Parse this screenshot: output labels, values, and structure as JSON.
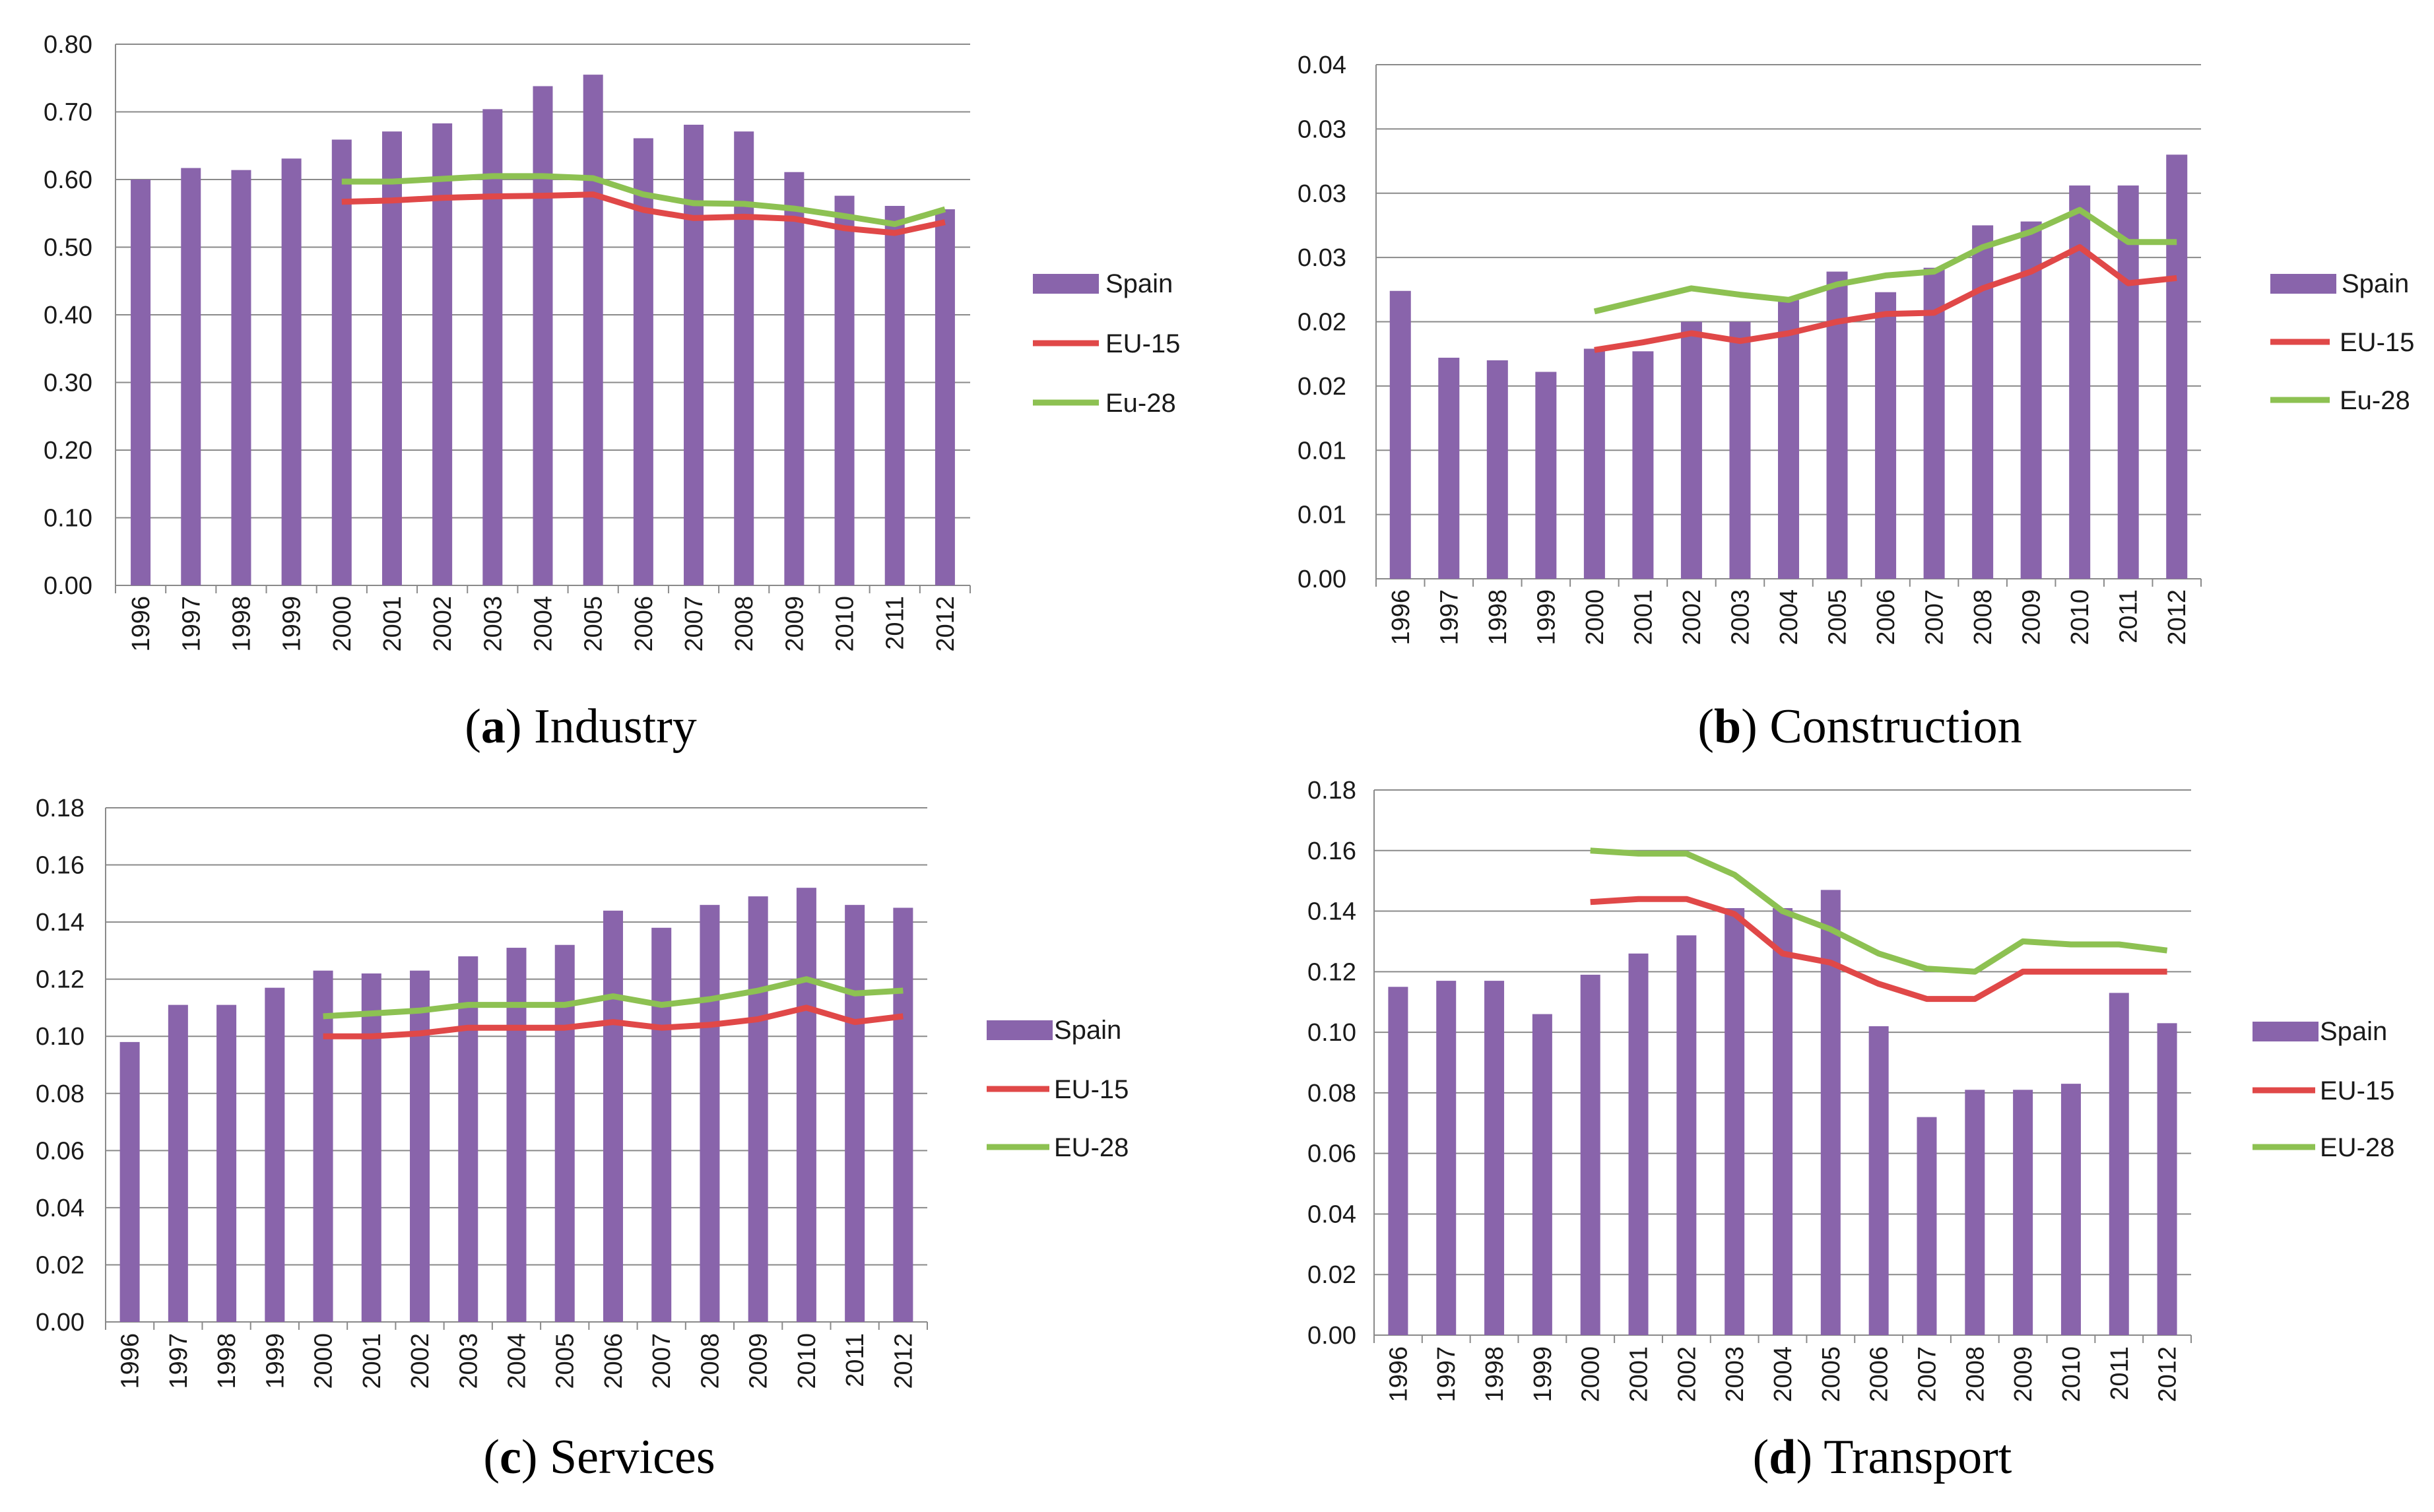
{
  "colors": {
    "spain": "#8964AB",
    "eu15": "#E04848",
    "eu28": "#8DC152",
    "grid": "#8A8A8A"
  },
  "years": [
    "1996",
    "1997",
    "1998",
    "1999",
    "2000",
    "2001",
    "2002",
    "2003",
    "2004",
    "2005",
    "2006",
    "2007",
    "2008",
    "2009",
    "2010",
    "2011",
    "2012"
  ],
  "chart_data": [
    {
      "type": "bar",
      "caption": {
        "letter": "a",
        "text": "Industry"
      },
      "categories": [
        "1996",
        "1997",
        "1998",
        "1999",
        "2000",
        "2001",
        "2002",
        "2003",
        "2004",
        "2005",
        "2006",
        "2007",
        "2008",
        "2009",
        "2010",
        "2011",
        "2012"
      ],
      "yticks": [
        "0.00",
        "0.10",
        "0.20",
        "0.30",
        "0.40",
        "0.50",
        "0.60",
        "0.70",
        "0.80"
      ],
      "ylim": [
        0,
        0.8
      ],
      "series": [
        {
          "name": "Spain",
          "kind": "bar",
          "values": [
            0.6,
            0.617,
            0.614,
            0.631,
            0.659,
            0.671,
            0.683,
            0.704,
            0.738,
            0.755,
            0.661,
            0.681,
            0.671,
            0.611,
            0.576,
            0.561,
            0.556
          ]
        },
        {
          "name": "EU-15",
          "kind": "line",
          "values": [
            null,
            null,
            null,
            null,
            0.567,
            0.569,
            0.573,
            0.575,
            0.576,
            0.578,
            0.555,
            0.543,
            0.545,
            0.542,
            0.528,
            0.521,
            0.537
          ]
        },
        {
          "name": "Eu-28",
          "kind": "line",
          "values": [
            null,
            null,
            null,
            null,
            0.597,
            0.597,
            0.601,
            0.605,
            0.605,
            0.602,
            0.578,
            0.565,
            0.564,
            0.557,
            0.546,
            0.534,
            0.556
          ]
        }
      ]
    },
    {
      "type": "bar",
      "caption": {
        "letter": "b",
        "text": "Construction"
      },
      "categories": [
        "1996",
        "1997",
        "1998",
        "1999",
        "2000",
        "2001",
        "2002",
        "2003",
        "2004",
        "2005",
        "2006",
        "2007",
        "2008",
        "2009",
        "2010",
        "2011",
        "2012"
      ],
      "yticks": [
        "0.00",
        "0.01",
        "0.01",
        "0.02",
        "0.02",
        "0.03",
        "0.03",
        "0.03",
        "0.04"
      ],
      "ylim": [
        0,
        0.04
      ],
      "series": [
        {
          "name": "Spain",
          "kind": "bar",
          "values": [
            0.0224,
            0.0172,
            0.017,
            0.0161,
            0.0179,
            0.0177,
            0.02,
            0.02,
            0.0217,
            0.0239,
            0.0223,
            0.0242,
            0.0275,
            0.0278,
            0.0306,
            0.0306,
            0.033
          ]
        },
        {
          "name": "EU-15",
          "kind": "line",
          "values": [
            null,
            null,
            null,
            null,
            0.0178,
            0.0184,
            0.0191,
            0.0185,
            0.0191,
            0.02,
            0.0206,
            0.0207,
            0.0226,
            0.0239,
            0.0258,
            0.023,
            0.0234
          ]
        },
        {
          "name": "Eu-28",
          "kind": "line",
          "values": [
            null,
            null,
            null,
            null,
            0.0208,
            0.0217,
            0.0226,
            0.0221,
            0.0217,
            0.0229,
            0.0236,
            0.0239,
            0.0258,
            0.027,
            0.0287,
            0.0262,
            0.0262
          ]
        }
      ]
    },
    {
      "type": "bar",
      "caption": {
        "letter": "c",
        "text": "Services"
      },
      "categories": [
        "1996",
        "1997",
        "1998",
        "1999",
        "2000",
        "2001",
        "2002",
        "2003",
        "2004",
        "2005",
        "2006",
        "2007",
        "2008",
        "2009",
        "2010",
        "2011",
        "2012"
      ],
      "yticks": [
        "0.00",
        "0.02",
        "0.04",
        "0.06",
        "0.08",
        "0.10",
        "0.12",
        "0.14",
        "0.16",
        "0.18"
      ],
      "ylim": [
        0,
        0.18
      ],
      "series": [
        {
          "name": "Spain",
          "kind": "bar",
          "values": [
            0.098,
            0.111,
            0.111,
            0.117,
            0.123,
            0.122,
            0.123,
            0.128,
            0.131,
            0.132,
            0.144,
            0.138,
            0.146,
            0.149,
            0.152,
            0.146,
            0.145
          ]
        },
        {
          "name": "EU-15",
          "kind": "line",
          "values": [
            null,
            null,
            null,
            null,
            0.1,
            0.1,
            0.101,
            0.103,
            0.103,
            0.103,
            0.105,
            0.103,
            0.104,
            0.106,
            0.11,
            0.105,
            0.107
          ]
        },
        {
          "name": "EU-28",
          "kind": "line",
          "values": [
            null,
            null,
            null,
            null,
            0.107,
            0.108,
            0.109,
            0.111,
            0.111,
            0.111,
            0.114,
            0.111,
            0.113,
            0.116,
            0.12,
            0.115,
            0.116
          ]
        }
      ]
    },
    {
      "type": "bar",
      "caption": {
        "letter": "d",
        "text": "Transport"
      },
      "categories": [
        "1996",
        "1997",
        "1998",
        "1999",
        "2000",
        "2001",
        "2002",
        "2003",
        "2004",
        "2005",
        "2006",
        "2007",
        "2008",
        "2009",
        "2010",
        "2011",
        "2012"
      ],
      "yticks": [
        "0.00",
        "0.02",
        "0.04",
        "0.06",
        "0.08",
        "0.10",
        "0.12",
        "0.14",
        "0.16",
        "0.18"
      ],
      "ylim": [
        0,
        0.18
      ],
      "series": [
        {
          "name": "Spain",
          "kind": "bar",
          "values": [
            0.115,
            0.117,
            0.117,
            0.106,
            0.119,
            0.126,
            0.132,
            0.141,
            0.141,
            0.147,
            0.102,
            0.072,
            0.081,
            0.081,
            0.083,
            0.113,
            0.103
          ]
        },
        {
          "name": "EU-15",
          "kind": "line",
          "values": [
            null,
            null,
            null,
            null,
            0.143,
            0.144,
            0.144,
            0.139,
            0.126,
            0.123,
            0.116,
            0.111,
            0.111,
            0.12,
            0.12,
            0.12,
            0.12
          ]
        },
        {
          "name": "EU-28",
          "kind": "line",
          "values": [
            null,
            null,
            null,
            null,
            0.16,
            0.159,
            0.159,
            0.152,
            0.14,
            0.134,
            0.126,
            0.121,
            0.12,
            0.13,
            0.129,
            0.129,
            0.127
          ]
        }
      ]
    }
  ]
}
